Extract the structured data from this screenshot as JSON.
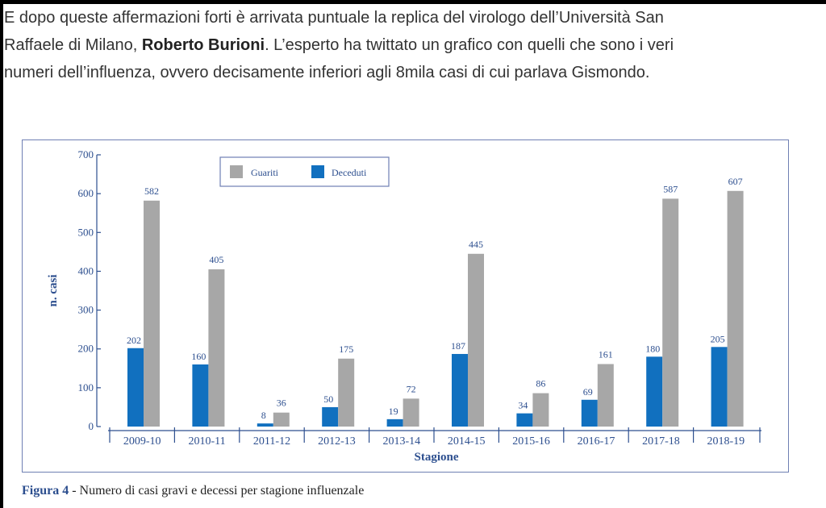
{
  "article": {
    "line1": "E dopo queste affermazioni forti è arrivata puntuale la replica del virologo dell’Università San",
    "line2_pre": "Raffaele di Milano, ",
    "line2_bold": "Roberto Burioni",
    "line2_post": ". L’esperto ha twittato un grafico con quelli che sono i veri",
    "line3": "numeri dell’influenza, ovvero decisamente inferiori agli 8mila casi di cui parlava Gismondo."
  },
  "colors": {
    "guariti": "#a7a7a7",
    "deceduti": "#1170bf",
    "axis": "#2d4f8f",
    "label": "#2d4f8f"
  },
  "chart_data": {
    "type": "bar",
    "categories": [
      "2009-10",
      "2010-11",
      "2011-12",
      "2012-13",
      "2013-14",
      "2014-15",
      "2015-16",
      "2016-17",
      "2017-18",
      "2018-19"
    ],
    "series": [
      {
        "name": "Deceduti",
        "values": [
          202,
          160,
          8,
          50,
          19,
          187,
          34,
          69,
          180,
          205
        ]
      },
      {
        "name": "Guariti",
        "values": [
          582,
          405,
          36,
          175,
          72,
          445,
          86,
          161,
          587,
          607
        ]
      }
    ],
    "legend_order": [
      "Guariti",
      "Deceduti"
    ],
    "xlabel": "Stagione",
    "ylabel": "n. casi",
    "ylim": [
      0,
      700
    ],
    "yticks": [
      0,
      100,
      200,
      300,
      400,
      500,
      600,
      700
    ],
    "legend_position": "top-left",
    "grid": false
  },
  "caption": {
    "label": "Figura 4",
    "text": " - Numero di casi gravi e decessi per stagione influenzale"
  }
}
